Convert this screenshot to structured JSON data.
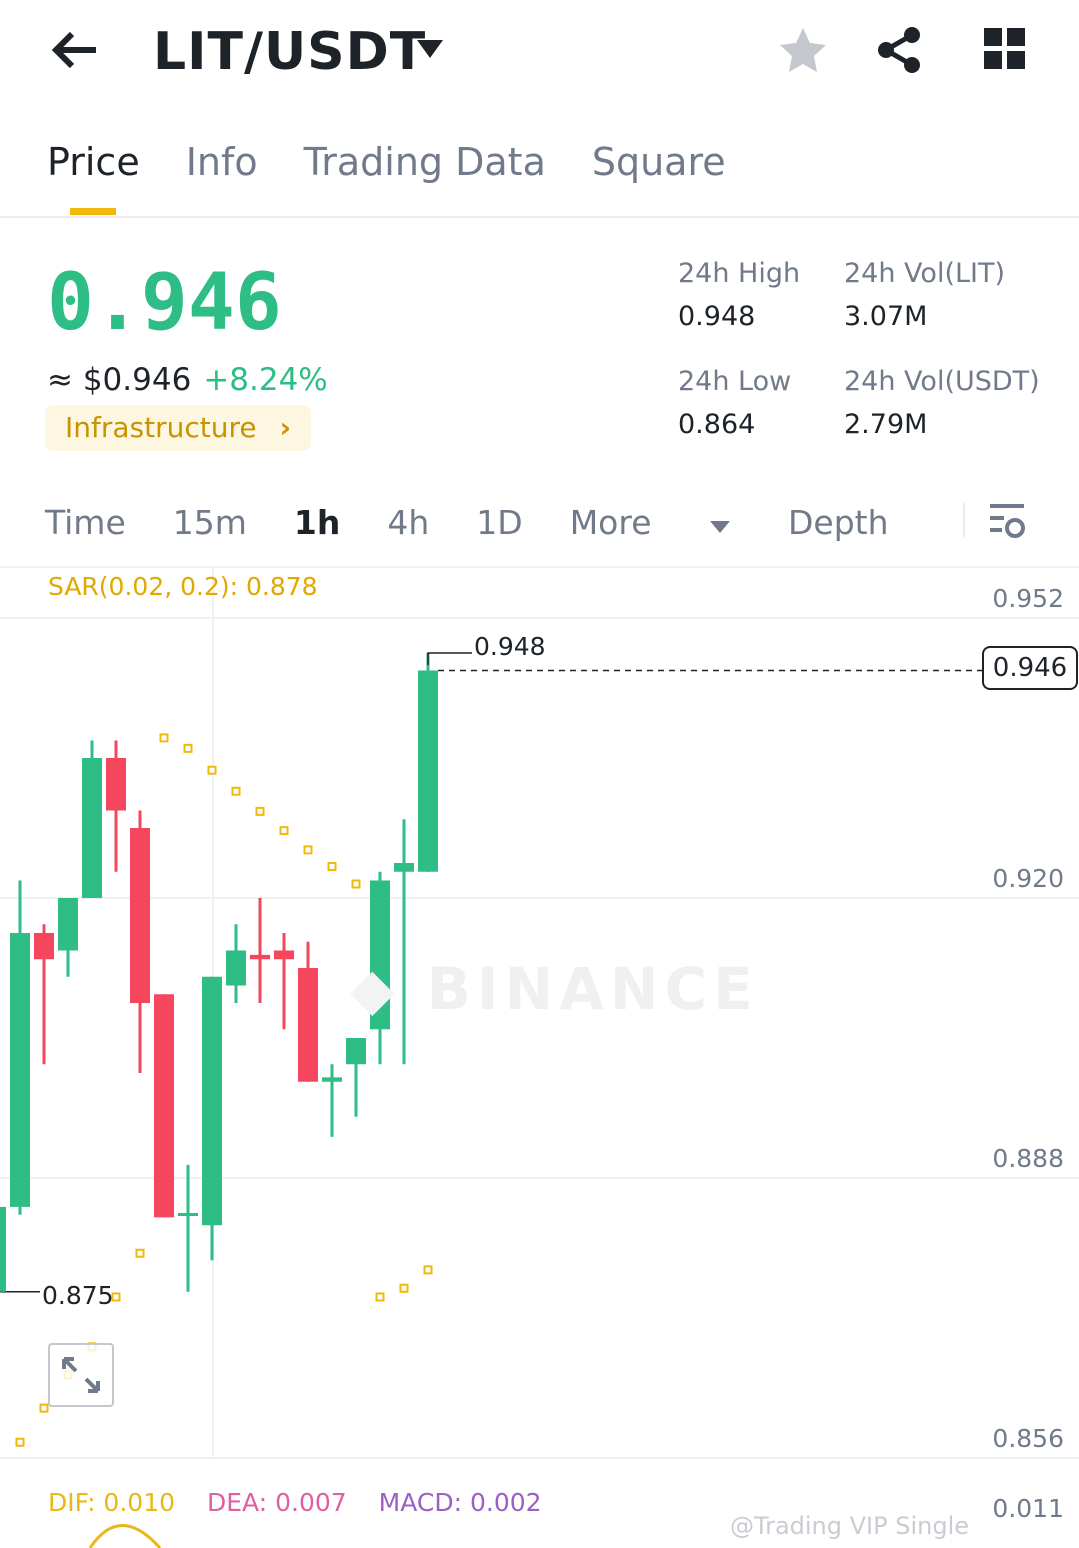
{
  "header": {
    "title": "LIT/USDT",
    "back_icon": "arrow-left-icon",
    "dropdown_icon": "caret-down-icon",
    "favorite_icon": "star-icon",
    "share_icon": "share-icon",
    "menu_icon": "grid-icon"
  },
  "tabs": [
    {
      "label": "Price",
      "active": true
    },
    {
      "label": "Info"
    },
    {
      "label": "Trading Data"
    },
    {
      "label": "Square"
    }
  ],
  "ticker": {
    "last_price": "0.946",
    "fiat_price": "≈ $0.946",
    "change": "+8.24%",
    "category": "Infrastructure",
    "category_chevron": "›",
    "stats": [
      {
        "label": "24h High",
        "value": "0.948"
      },
      {
        "label": "24h Vol(LIT)",
        "value": "3.07M"
      },
      {
        "label": "24h Low",
        "value": "0.864"
      },
      {
        "label": "24h Vol(USDT)",
        "value": "2.79M"
      }
    ]
  },
  "timeframes": {
    "items": [
      "Time",
      "15m",
      "1h",
      "4h",
      "1D",
      "More",
      "Depth"
    ],
    "selected": "1h",
    "settings_icon": "chart-settings-icon"
  },
  "indicator": {
    "sar_label": "SAR(0.02, 0.2): 0.878",
    "dif": "DIF: 0.010",
    "dea": "DEA: 0.007",
    "macd": "MACD: 0.002"
  },
  "colors": {
    "up": "#2ebd85",
    "down": "#f6465d",
    "sar": "#f0b90b",
    "accent": "#f0b90b",
    "dif": "#e8b817",
    "dea": "#e05fa0",
    "macd": "#9c5fc4"
  },
  "watermark": "BINANCE",
  "credit": "@Trading VIP Single",
  "chart_data": {
    "type": "candlestick",
    "interval": "1h",
    "ylim": [
      0.852,
      0.954
    ],
    "y_ticks": [
      "0.952",
      "0.920",
      "0.888",
      "0.856"
    ],
    "high_label": "0.948",
    "low_label": "0.875",
    "last_label": "0.946",
    "macd_axis_label": "0.011",
    "candles": [
      {
        "o": 0.8847,
        "c": 0.916,
        "h": 0.922,
        "l": 0.8838
      },
      {
        "o": 0.916,
        "c": 0.913,
        "h": 0.917,
        "l": 0.901
      },
      {
        "o": 0.914,
        "c": 0.92,
        "h": 0.92,
        "l": 0.911
      },
      {
        "o": 0.92,
        "c": 0.936,
        "h": 0.938,
        "l": 0.92
      },
      {
        "o": 0.936,
        "c": 0.93,
        "h": 0.938,
        "l": 0.923
      },
      {
        "o": 0.928,
        "c": 0.908,
        "h": 0.93,
        "l": 0.9
      },
      {
        "o": 0.909,
        "c": 0.8835,
        "h": 0.909,
        "l": 0.8835
      },
      {
        "o": 0.8838,
        "c": 0.884,
        "h": 0.8895,
        "l": 0.875
      },
      {
        "o": 0.8826,
        "c": 0.911,
        "h": 0.911,
        "l": 0.8786
      },
      {
        "o": 0.91,
        "c": 0.914,
        "h": 0.917,
        "l": 0.908
      },
      {
        "o": 0.9135,
        "c": 0.913,
        "h": 0.92,
        "l": 0.908
      },
      {
        "o": 0.914,
        "c": 0.913,
        "h": 0.916,
        "l": 0.905
      },
      {
        "o": 0.912,
        "c": 0.899,
        "h": 0.915,
        "l": 0.899
      },
      {
        "o": 0.899,
        "c": 0.8995,
        "h": 0.901,
        "l": 0.8927
      },
      {
        "o": 0.901,
        "c": 0.904,
        "h": 0.904,
        "l": 0.895
      },
      {
        "o": 0.905,
        "c": 0.922,
        "h": 0.923,
        "l": 0.901
      },
      {
        "o": 0.923,
        "c": 0.924,
        "h": 0.929,
        "l": 0.901
      },
      {
        "o": 0.923,
        "c": 0.946,
        "h": 0.948,
        "l": 0.923
      }
    ],
    "sar": [
      0.8578,
      0.8617,
      0.8655,
      0.8687,
      0.8744,
      0.8794,
      0.9383,
      0.9371,
      0.9346,
      0.9322,
      0.9299,
      0.9277,
      0.9255,
      0.9236,
      0.9216,
      0.8744,
      0.8754,
      0.8775
    ]
  }
}
